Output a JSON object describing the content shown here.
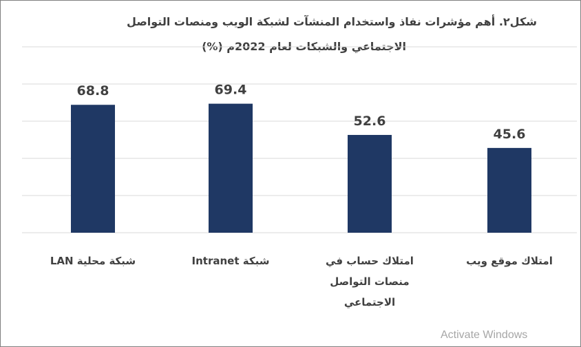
{
  "chart_data": {
    "type": "bar",
    "title_line1": "شكل٢. أهم مؤشرات نفاذ واستخدام المنشآت لشبكة الويب ومنصات التواصل",
    "title_line2": "الاجتماعي والشبكات  لعام 2022م (%)",
    "categories": [
      "شبكة محلية LAN",
      "شبكة Intranet",
      "امتلاك حساب في منصات التواصل الاجتماعي",
      "امتلاك موقع ويب"
    ],
    "values": [
      68.8,
      69.4,
      52.6,
      45.6
    ],
    "data_labels": [
      "68.8",
      "69.4",
      "52.6",
      "45.6"
    ],
    "ylim": [
      0,
      100
    ],
    "grid_step": 20,
    "grid": true,
    "y_tick_labels_shown": false,
    "bar_color": "#1f3864",
    "xlabel": "",
    "ylabel": ""
  },
  "watermark": "Activate Windows"
}
